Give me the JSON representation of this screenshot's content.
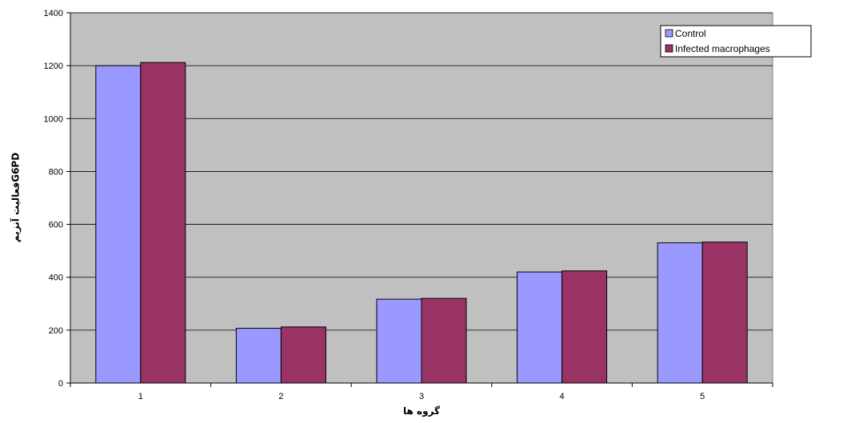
{
  "chart_data": {
    "type": "bar",
    "title": "",
    "xlabel": "گروه ها",
    "ylabel": "فعالیت آنزیمG6PD",
    "categories": [
      "1",
      "2",
      "3",
      "4",
      "5"
    ],
    "series": [
      {
        "name": "Control",
        "values": [
          1200,
          207,
          317,
          420,
          530
        ],
        "color": "#9999FF"
      },
      {
        "name": "Infected macrophages",
        "values": [
          1212,
          212,
          320,
          424,
          533
        ],
        "color": "#993366"
      }
    ],
    "ylim": [
      0,
      1400
    ],
    "yticks": [
      0,
      200,
      400,
      600,
      800,
      1000,
      1200,
      1400
    ],
    "grid": true,
    "plot_background": "#C0C0C0",
    "legend_position": "top-right"
  }
}
